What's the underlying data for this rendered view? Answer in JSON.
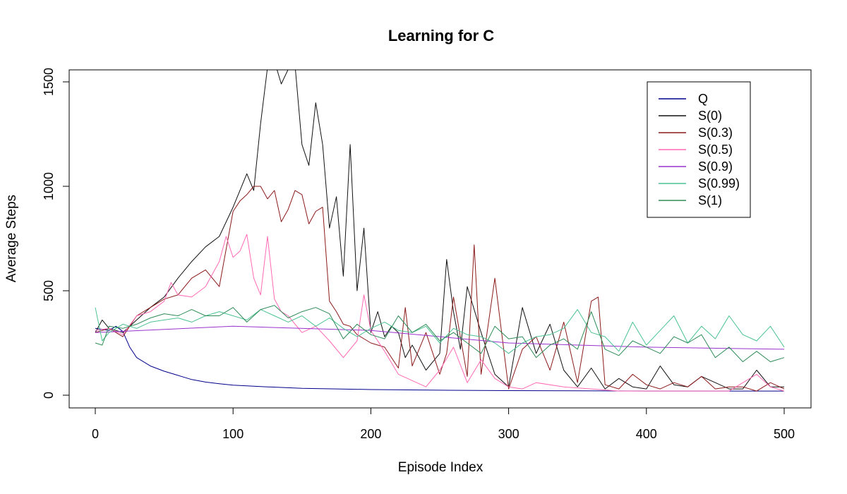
{
  "chart_data": {
    "type": "line",
    "title": "Learning for C",
    "xlabel": "Episode Index",
    "ylabel": "Average Steps",
    "xlim": [
      0,
      500
    ],
    "ylim": [
      0,
      1550
    ],
    "xticks": [
      "0",
      "100",
      "200",
      "300",
      "400",
      "500"
    ],
    "yticks": [
      "0",
      "500",
      "1000",
      "1500"
    ],
    "grid": false,
    "legend_position": "top-right",
    "series": [
      {
        "name": "Q",
        "color": "#00008B",
        "x": [
          0,
          10,
          15,
          20,
          25,
          30,
          40,
          50,
          60,
          70,
          80,
          90,
          100,
          125,
          150,
          175,
          200,
          250,
          300,
          350,
          400,
          450,
          500
        ],
        "y": [
          320,
          310,
          330,
          305,
          230,
          180,
          140,
          115,
          95,
          75,
          63,
          55,
          48,
          40,
          33,
          30,
          27,
          24,
          22,
          21,
          20,
          20,
          20
        ]
      },
      {
        "name": "S(0)",
        "color": "#111111",
        "x": [
          0,
          5,
          10,
          20,
          30,
          40,
          50,
          60,
          70,
          80,
          90,
          100,
          110,
          115,
          120,
          125,
          130,
          135,
          140,
          145,
          150,
          155,
          160,
          165,
          170,
          175,
          180,
          185,
          190,
          195,
          200,
          205,
          210,
          215,
          220,
          225,
          230,
          240,
          250,
          255,
          260,
          265,
          270,
          280,
          285,
          290,
          300,
          310,
          320,
          330,
          340,
          350,
          360,
          370,
          380,
          390,
          400,
          410,
          420,
          430,
          440,
          450,
          460,
          470,
          480,
          490,
          500
        ],
        "y": [
          300,
          360,
          320,
          300,
          360,
          420,
          470,
          560,
          640,
          710,
          760,
          900,
          1060,
          980,
          1300,
          1570,
          1600,
          1490,
          1560,
          1580,
          1200,
          1100,
          1400,
          1200,
          800,
          950,
          570,
          1200,
          500,
          800,
          300,
          400,
          280,
          330,
          300,
          180,
          240,
          120,
          200,
          650,
          400,
          220,
          520,
          300,
          200,
          100,
          40,
          420,
          200,
          340,
          120,
          40,
          130,
          30,
          80,
          40,
          30,
          140,
          50,
          40,
          90,
          60,
          30,
          30,
          120,
          40,
          40
        ]
      },
      {
        "name": "S(0.3)",
        "color": "#8B1A1A",
        "x": [
          0,
          10,
          20,
          30,
          40,
          50,
          60,
          70,
          80,
          90,
          100,
          105,
          110,
          115,
          120,
          125,
          130,
          135,
          140,
          145,
          150,
          155,
          160,
          165,
          170,
          175,
          180,
          185,
          190,
          200,
          210,
          220,
          225,
          230,
          240,
          250,
          255,
          260,
          270,
          275,
          280,
          290,
          300,
          310,
          320,
          330,
          340,
          350,
          360,
          365,
          370,
          380,
          390,
          400,
          410,
          420,
          430,
          440,
          450,
          460,
          470,
          480,
          490,
          500
        ],
        "y": [
          300,
          320,
          280,
          380,
          420,
          460,
          480,
          560,
          600,
          520,
          880,
          930,
          960,
          1000,
          1000,
          940,
          980,
          830,
          890,
          980,
          960,
          820,
          880,
          900,
          450,
          400,
          340,
          330,
          290,
          250,
          230,
          130,
          420,
          140,
          300,
          100,
          200,
          470,
          90,
          720,
          100,
          560,
          30,
          220,
          280,
          120,
          350,
          60,
          450,
          470,
          50,
          30,
          100,
          50,
          30,
          60,
          40,
          90,
          30,
          40,
          40,
          20,
          60,
          30
        ]
      },
      {
        "name": "S(0.5)",
        "color": "#FF69B4",
        "x": [
          0,
          10,
          20,
          30,
          40,
          50,
          55,
          60,
          70,
          80,
          90,
          95,
          100,
          105,
          110,
          115,
          120,
          125,
          130,
          135,
          140,
          150,
          160,
          170,
          180,
          190,
          195,
          200,
          210,
          220,
          230,
          240,
          250,
          260,
          270,
          280,
          290,
          300,
          310,
          320,
          340,
          360,
          380,
          400,
          420,
          440,
          460,
          480,
          490,
          500
        ],
        "y": [
          310,
          320,
          290,
          380,
          400,
          450,
          540,
          480,
          470,
          520,
          640,
          760,
          660,
          690,
          770,
          560,
          480,
          760,
          460,
          400,
          380,
          300,
          330,
          260,
          180,
          260,
          480,
          310,
          210,
          100,
          70,
          40,
          120,
          230,
          60,
          170,
          80,
          40,
          30,
          60,
          40,
          30,
          20,
          20,
          20,
          20,
          20,
          100,
          40,
          20
        ]
      },
      {
        "name": "S(0.9)",
        "color": "#9932CC",
        "x": [
          0,
          100,
          200,
          300,
          400,
          500
        ],
        "y": [
          300,
          330,
          310,
          250,
          230,
          220
        ]
      },
      {
        "name": "S(0.99)",
        "color": "#4BC293",
        "x": [
          0,
          5,
          10,
          20,
          30,
          40,
          50,
          60,
          70,
          80,
          90,
          100,
          110,
          120,
          130,
          140,
          150,
          160,
          170,
          180,
          190,
          200,
          210,
          220,
          230,
          240,
          250,
          260,
          270,
          280,
          290,
          300,
          310,
          320,
          330,
          340,
          350,
          360,
          370,
          380,
          390,
          400,
          410,
          420,
          430,
          440,
          450,
          460,
          470,
          480,
          490,
          500
        ],
        "y": [
          420,
          260,
          300,
          340,
          320,
          350,
          360,
          370,
          350,
          380,
          400,
          380,
          360,
          410,
          380,
          350,
          380,
          330,
          370,
          320,
          280,
          320,
          350,
          310,
          300,
          330,
          250,
          320,
          290,
          280,
          250,
          200,
          250,
          280,
          290,
          320,
          410,
          300,
          280,
          210,
          350,
          240,
          310,
          380,
          250,
          330,
          270,
          380,
          290,
          260,
          330,
          230
        ]
      },
      {
        "name": "S(1)",
        "color": "#2E8B57",
        "x": [
          0,
          5,
          10,
          20,
          30,
          40,
          50,
          60,
          70,
          80,
          90,
          100,
          110,
          120,
          130,
          140,
          150,
          160,
          170,
          180,
          190,
          200,
          210,
          220,
          230,
          240,
          250,
          260,
          270,
          280,
          290,
          300,
          310,
          320,
          330,
          340,
          350,
          360,
          370,
          380,
          390,
          400,
          410,
          420,
          430,
          440,
          450,
          460,
          470,
          480,
          490,
          500
        ],
        "y": [
          250,
          240,
          330,
          320,
          340,
          370,
          390,
          380,
          410,
          380,
          380,
          420,
          350,
          410,
          430,
          370,
          400,
          420,
          390,
          270,
          340,
          290,
          270,
          380,
          300,
          340,
          260,
          300,
          250,
          200,
          330,
          270,
          280,
          180,
          240,
          270,
          220,
          400,
          220,
          190,
          260,
          230,
          200,
          280,
          250,
          290,
          180,
          230,
          160,
          210,
          160,
          180
        ]
      }
    ]
  }
}
